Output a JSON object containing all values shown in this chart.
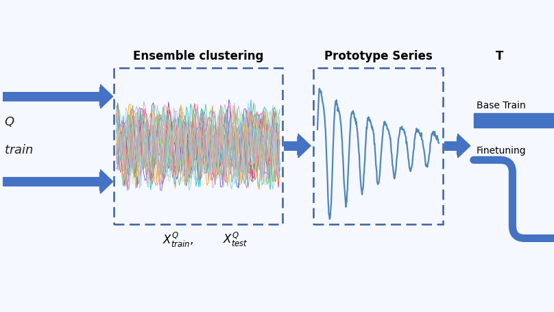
{
  "bg_color": "#f5f8ff",
  "arrow_color": "#4472c4",
  "dashed_box_color": "#3a5fa0",
  "title_ensemble": "Ensemble clustering",
  "title_prototype": "Prototype Series",
  "title_right": "T",
  "label_xtrain": "$X^{Q}_{train}$,",
  "label_xtest": "$X^{Q}_{test}$",
  "label_left_top": "$Q$",
  "label_left_bot": "$train$",
  "label_base_train": "Base Train",
  "label_finetuning": "Finetuning",
  "cluster_colors": [
    "#e74c3c",
    "#e67e22",
    "#f39c12",
    "#2ecc71",
    "#1abc9c",
    "#3498db",
    "#9b59b6",
    "#e91e63",
    "#ff5722",
    "#795548",
    "#607d8b",
    "#00bcd4",
    "#8bc34a",
    "#ff9800",
    "#673ab7",
    "#f06292",
    "#a5d6a7",
    "#80cbc4",
    "#90caf9",
    "#ce93d8",
    "#ef9a9a",
    "#ffcc80",
    "#c5e1a5",
    "#b39ddb",
    "#f48fb1",
    "#81d4fa",
    "#a5d6a7",
    "#ffab91",
    "#bcaaa4",
    "#b0bec5"
  ],
  "prototype_color": "#4e86b8",
  "font_size_title": 12,
  "font_size_label": 11,
  "font_size_math": 12,
  "figw": 8.08,
  "figh": 4.55,
  "dpi": 100
}
